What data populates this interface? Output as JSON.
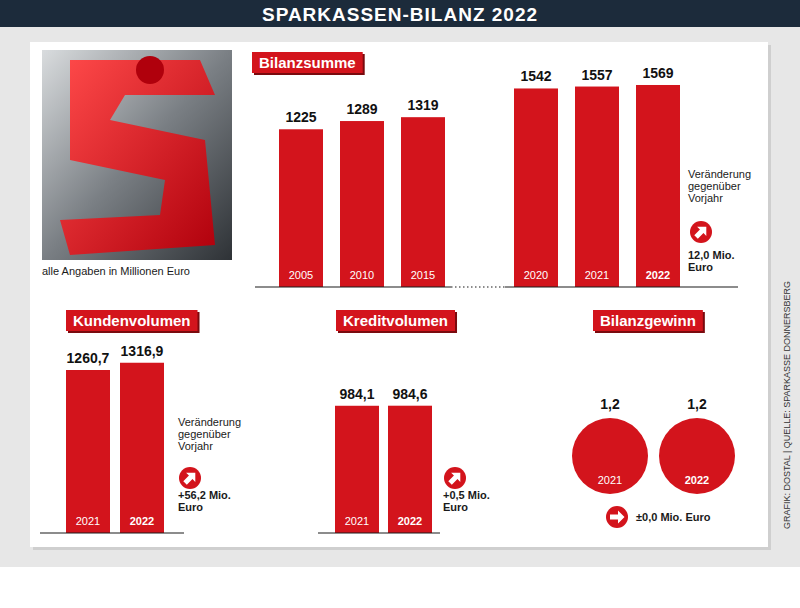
{
  "header": {
    "title": "SPARKASSEN-BILANZ 2022"
  },
  "note": "alle Angaben in Millionen Euro",
  "source": "GRAFIK: DOSTAL | QUELLE: SPARKASSE DONNERSBERG",
  "chart_data": [
    {
      "type": "bar",
      "title": "Bilanzsumme",
      "categories": [
        "2005",
        "2010",
        "2015",
        "2020",
        "2021",
        "2022"
      ],
      "values": [
        1225,
        1289,
        1319,
        1542,
        1557,
        1569
      ],
      "color": "#d3141c",
      "ylim": [
        0,
        1600
      ],
      "data_labels": true,
      "tick_labels": "x",
      "annotations": [
        "Veränderung gegenüber Vorjahr",
        "12,0 Mio. Euro"
      ]
    },
    {
      "type": "bar",
      "title": "Kundenvolumen",
      "categories": [
        "2021",
        "2022"
      ],
      "values": [
        1260.7,
        1316.9
      ],
      "value_labels": [
        "1260,7",
        "1316,9"
      ],
      "color": "#d3141c",
      "ylim": [
        0,
        1400
      ],
      "data_labels": true,
      "tick_labels": "x",
      "annotations": [
        "Veränderung gegenüber Vorjahr",
        "+56,2 Mio. Euro"
      ]
    },
    {
      "type": "bar",
      "title": "Kreditvolumen",
      "categories": [
        "2021",
        "2022"
      ],
      "values": [
        984.1,
        984.6
      ],
      "value_labels": [
        "984,1",
        "984,6"
      ],
      "color": "#d3141c",
      "ylim": [
        0,
        1400
      ],
      "data_labels": true,
      "tick_labels": "x",
      "annotations": [
        "+0,5 Mio. Euro"
      ]
    },
    {
      "type": "bubble",
      "title": "Bilanzgewinn",
      "categories": [
        "2021",
        "2022"
      ],
      "values": [
        1.2,
        1.2
      ],
      "value_labels": [
        "1,2",
        "1,2"
      ],
      "color": "#d3141c",
      "data_labels": true,
      "tick_labels": "x",
      "annotations": [
        "±0,0 Mio. Euro"
      ]
    }
  ]
}
